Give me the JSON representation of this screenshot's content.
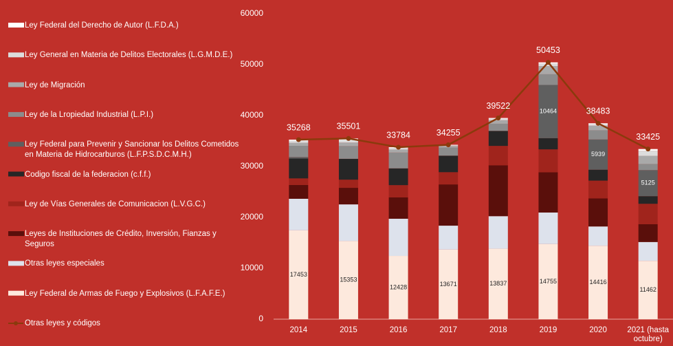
{
  "chart_data": {
    "type": "bar",
    "categories": [
      "2014",
      "2015",
      "2016",
      "2017",
      "2018",
      "2019",
      "2020",
      "2021 (hasta octubre)"
    ],
    "ylim": [
      0,
      60000
    ],
    "yticks": [
      0,
      10000,
      20000,
      30000,
      40000,
      50000,
      60000
    ],
    "stacked": true,
    "grid": false,
    "legend": "left",
    "series": [
      {
        "name": "Ley Federal del Derecho de Autor (L.F.D.A.)",
        "color": "#ffffff",
        "values": [
          215,
          298,
          156,
          84,
          135,
          234,
          178,
          338
        ]
      },
      {
        "name": "Ley General en Materia de Delitos Electorales (L.G.M.D.E.)",
        "color": "#dcdcdc",
        "values": [
          400,
          500,
          300,
          150,
          300,
          500,
          300,
          1000
        ]
      },
      {
        "name": "Ley de Migración",
        "color": "#a9a9a9",
        "values": [
          600,
          700,
          600,
          300,
          700,
          1600,
          900,
          1600
        ]
      },
      {
        "name": "Ley de la Lropiedad Industrial (L.P.I.)",
        "color": "#8c8c8c",
        "values": [
          2200,
          2500,
          3100,
          1600,
          1400,
          2100,
          1800,
          1200
        ]
      },
      {
        "name": "Ley Federal para Prevenir y Sancionar los Delitos Cometidos en Materia de Hidrocarburos (L.F.P.S.D.C.M.H.)",
        "color": "#5f5f5f",
        "values": [
          300,
          0,
          0,
          0,
          0,
          10464,
          5939,
          5125
        ],
        "show_labels": [
          false,
          false,
          false,
          false,
          false,
          true,
          true,
          true
        ]
      },
      {
        "name": "Codigo fiscal de la federacion (c.f.f.)",
        "color": "#262626",
        "values": [
          3900,
          4100,
          3300,
          3250,
          2950,
          2200,
          2150,
          1500
        ]
      },
      {
        "name": "Ley de Vías Generales de Comunicacion (L.V.G.C.)",
        "color": "#a0241c",
        "values": [
          1300,
          1600,
          2400,
          2400,
          3800,
          4500,
          3500,
          4000
        ]
      },
      {
        "name": "Leyes de Instituciones de Crédito, Inversión, Fianzas y Seguros",
        "color": "#5a0f0b",
        "values": [
          2700,
          3250,
          4200,
          8100,
          10000,
          7900,
          5500,
          3500
        ]
      },
      {
        "name": "Otras leyes especiales",
        "color": "#dde2ec",
        "values": [
          6200,
          7200,
          7300,
          4700,
          6400,
          6200,
          3800,
          3700
        ]
      },
      {
        "name": "Ley Federal de Armas de Fuego y Explosivos (L.F.A.F.E.)",
        "color": "#fde9dd",
        "values": [
          17453,
          15353,
          12428,
          13671,
          13837,
          14755,
          14416,
          11462
        ],
        "show_labels": [
          true,
          true,
          true,
          true,
          true,
          true,
          true,
          true
        ]
      },
      {
        "name": "Otras leyes y códigos",
        "color": "#8a3a0c",
        "type": "line",
        "values": [
          35268,
          35501,
          33784,
          34255,
          39522,
          50453,
          38483,
          33425
        ],
        "show_labels": [
          true,
          true,
          true,
          true,
          true,
          true,
          true,
          true
        ]
      }
    ]
  }
}
